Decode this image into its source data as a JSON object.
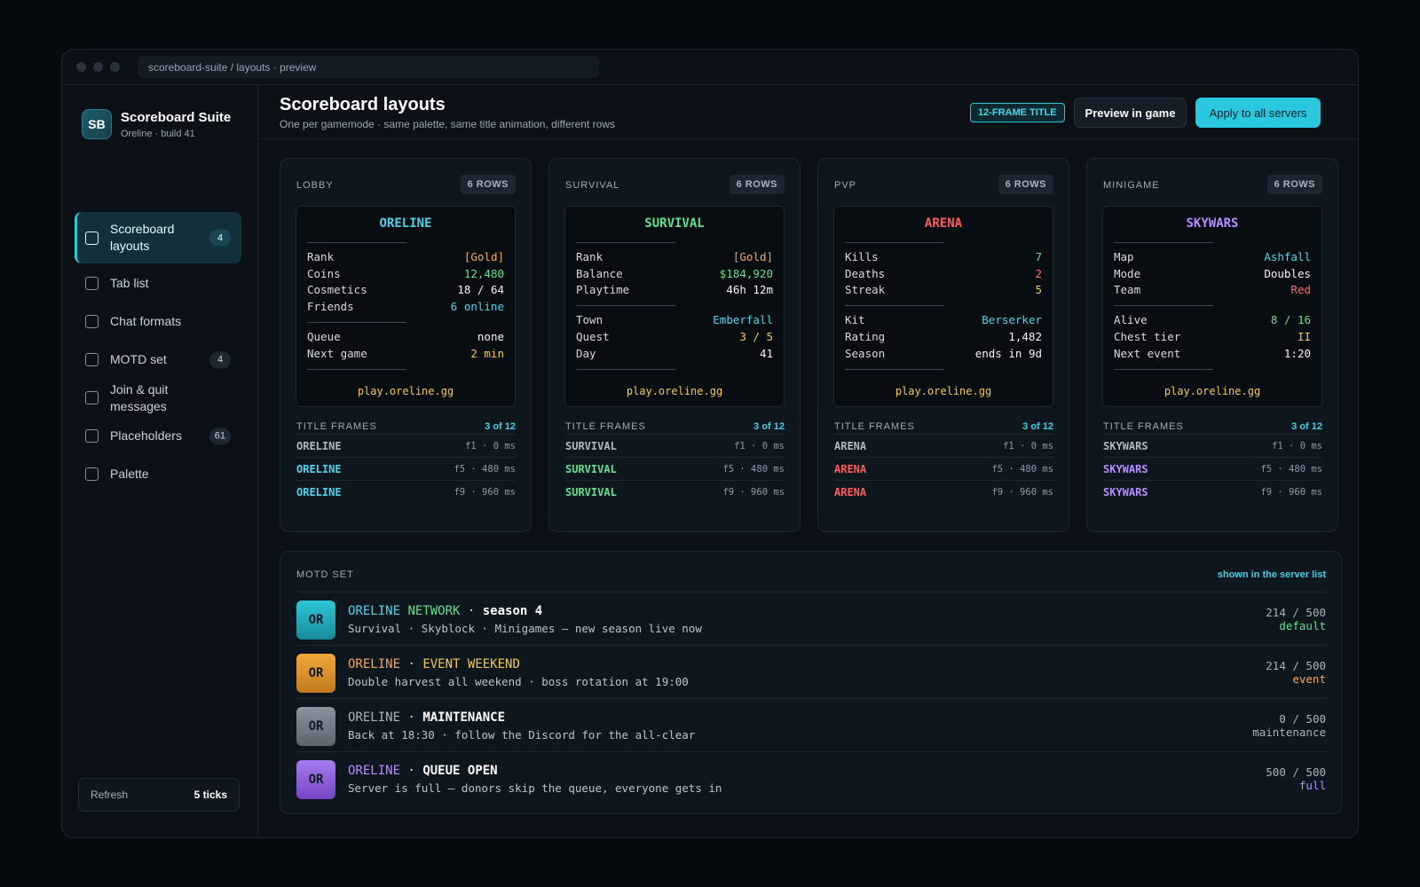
{
  "window": {
    "url": "scoreboard-suite / layouts · preview"
  },
  "brand": {
    "initials": "SB",
    "name": "Scoreboard Suite",
    "sub": "Oreline · build 41"
  },
  "nav": [
    {
      "label": "Scoreboard layouts",
      "badge": "4",
      "active": true
    },
    {
      "label": "Tab list",
      "badge": ""
    },
    {
      "label": "Chat formats",
      "badge": ""
    },
    {
      "label": "MOTD set",
      "badge": "4"
    },
    {
      "label": "Join & quit messages",
      "badge": ""
    },
    {
      "label": "Placeholders",
      "badge": "61"
    },
    {
      "label": "Palette",
      "badge": ""
    }
  ],
  "refresh": {
    "label": "Refresh",
    "value": "5 ticks"
  },
  "header": {
    "title": "Scoreboard layouts",
    "subtitle": "One per gamemode · same palette, same title animation, different rows",
    "badge": "12-FRAME TITLE",
    "preview_label": "Preview in game",
    "apply_label": "Apply to all servers"
  },
  "cards": [
    {
      "name": "LOBBY",
      "rows_badge": "6 ROWS",
      "title": "ORELINE",
      "title_color": "#4fd3ea",
      "group1": [
        {
          "label": "Rank",
          "value": "[Gold]",
          "color": "#f0a85a"
        },
        {
          "label": "Coins",
          "value": "12,480",
          "color": "#5fe08e"
        },
        {
          "label": "Cosmetics",
          "value": "18 / 64",
          "color": "#f1f5f8"
        },
        {
          "label": "Friends",
          "value": "6 online",
          "color": "#4fd3ea"
        }
      ],
      "group2": [
        {
          "label": "Queue",
          "value": "none",
          "color": "#f1f5f8"
        },
        {
          "label": "Next game",
          "value": "2 min",
          "color": "#f4c84c"
        }
      ],
      "footer": "play.oreline.gg",
      "frames_label": "TITLE FRAMES",
      "frames_count": "3 of 12",
      "frames": [
        {
          "text": "ORELINE",
          "meta": "f1 · 0 ms"
        },
        {
          "text": "ORELINE",
          "meta": "f5 · 480 ms"
        },
        {
          "text": "ORELINE",
          "meta": "f9 · 960 ms"
        }
      ]
    },
    {
      "name": "SURVIVAL",
      "rows_badge": "6 ROWS",
      "title": "SURVIVAL",
      "title_color": "#5fe08e",
      "group1": [
        {
          "label": "Rank",
          "value": "[Gold]",
          "color": "#f0a85a"
        },
        {
          "label": "Balance",
          "value": "$184,920",
          "color": "#5fe08e"
        },
        {
          "label": "Playtime",
          "value": "46h 12m",
          "color": "#f1f5f8"
        }
      ],
      "group2": [
        {
          "label": "Town",
          "value": "Emberfall",
          "color": "#4fd3ea"
        },
        {
          "label": "Quest",
          "value": "3 / 5",
          "color": "#f4c84c"
        },
        {
          "label": "Day",
          "value": "41",
          "color": "#f1f5f8"
        }
      ],
      "footer": "play.oreline.gg",
      "frames_label": "TITLE FRAMES",
      "frames_count": "3 of 12",
      "frames": [
        {
          "text": "SURVIVAL",
          "meta": "f1 · 0 ms"
        },
        {
          "text": "SURVIVAL",
          "meta": "f5 · 480 ms"
        },
        {
          "text": "SURVIVAL",
          "meta": "f9 · 960 ms"
        }
      ]
    },
    {
      "name": "PVP",
      "rows_badge": "6 ROWS",
      "title": "ARENA",
      "title_color": "#ff5c5c",
      "group1": [
        {
          "label": "Kills",
          "value": "7",
          "color": "#5fe08e"
        },
        {
          "label": "Deaths",
          "value": "2",
          "color": "#ff6b6b"
        },
        {
          "label": "Streak",
          "value": "5",
          "color": "#f4c84c"
        }
      ],
      "group2": [
        {
          "label": "Kit",
          "value": "Berserker",
          "color": "#4fd3ea"
        },
        {
          "label": "Rating",
          "value": "1,482",
          "color": "#f1f5f8"
        },
        {
          "label": "Season",
          "value": "ends in 9d",
          "color": "#f1f5f8"
        }
      ],
      "footer": "play.oreline.gg",
      "frames_label": "TITLE FRAMES",
      "frames_count": "3 of 12",
      "frames": [
        {
          "text": "ARENA",
          "meta": "f1 · 0 ms"
        },
        {
          "text": "ARENA",
          "meta": "f5 · 480 ms"
        },
        {
          "text": "ARENA",
          "meta": "f9 · 960 ms"
        }
      ]
    },
    {
      "name": "MINIGAME",
      "rows_badge": "6 ROWS",
      "title": "SKYWARS",
      "title_color": "#b98cff",
      "group1": [
        {
          "label": "Map",
          "value": "Ashfall",
          "color": "#4fd3ea"
        },
        {
          "label": "Mode",
          "value": "Doubles",
          "color": "#f1f5f8"
        },
        {
          "label": "Team",
          "value": "Red",
          "color": "#ff6b6b"
        }
      ],
      "group2": [
        {
          "label": "Alive",
          "value": "8 / 16",
          "color": "#5fe08e"
        },
        {
          "label": "Chest tier",
          "value": "II",
          "color": "#f4c84c"
        },
        {
          "label": "Next event",
          "value": "1:20",
          "color": "#f1f5f8"
        }
      ],
      "footer": "play.oreline.gg",
      "frames_label": "TITLE FRAMES",
      "frames_count": "3 of 12",
      "frames": [
        {
          "text": "SKYWARS",
          "meta": "f1 · 0 ms"
        },
        {
          "text": "SKYWARS",
          "meta": "f5 · 480 ms"
        },
        {
          "text": "SKYWARS",
          "meta": "f9 · 960 ms"
        }
      ]
    }
  ],
  "motd": {
    "label": "MOTD SET",
    "note": "shown in the server list",
    "entries": [
      {
        "icon": "OR",
        "icon_colors": [
          "#2ec6d9",
          "#178a9b"
        ],
        "parts": [
          {
            "text": "ORELINE",
            "color": "#4fd3ea",
            "bold": false
          },
          {
            "text": " NETWORK",
            "color": "#5fe08e",
            "bold": false
          },
          {
            "text": " · ",
            "color": "#d3dbe2",
            "bold": false
          },
          {
            "text": "season 4",
            "color": "#ffffff",
            "bold": true
          }
        ],
        "desc": "Survival · Skyblock · Minigames — new season live now",
        "count": "214 / 500",
        "status": "default",
        "status_color": "#5fe08e"
      },
      {
        "icon": "OR",
        "icon_colors": [
          "#f2a93b",
          "#c07a1c"
        ],
        "parts": [
          {
            "text": "ORELINE",
            "color": "#f0a85a",
            "bold": false
          },
          {
            "text": " · ",
            "color": "#d3dbe2",
            "bold": false
          },
          {
            "text": "EVENT WEEKEND",
            "color": "#f4c84c",
            "bold": false
          }
        ],
        "desc": "Double harvest all weekend · boss rotation at 19:00",
        "count": "214 / 500",
        "status": "event",
        "status_color": "#f0a85a"
      },
      {
        "icon": "OR",
        "icon_colors": [
          "#8a949e",
          "#5b646d"
        ],
        "parts": [
          {
            "text": "ORELINE",
            "color": "#a7b3be",
            "bold": false
          },
          {
            "text": " · ",
            "color": "#d3dbe2",
            "bold": false
          },
          {
            "text": "MAINTENANCE",
            "color": "#ffffff",
            "bold": true
          }
        ],
        "desc": "Back at 18:30 · follow the Discord for the all-clear",
        "count": "0 / 500",
        "status": "maintenance",
        "status_color": "#a7b3be"
      },
      {
        "icon": "OR",
        "icon_colors": [
          "#a77bf0",
          "#7446c4"
        ],
        "parts": [
          {
            "text": "ORELINE",
            "color": "#b98cff",
            "bold": false
          },
          {
            "text": " · ",
            "color": "#d3dbe2",
            "bold": false
          },
          {
            "text": "QUEUE OPEN",
            "color": "#ffffff",
            "bold": true
          }
        ],
        "desc": "Server is full — donors skip the queue, everyone gets in",
        "count": "500 / 500",
        "status": "full",
        "status_color": "#b98cff"
      }
    ]
  }
}
